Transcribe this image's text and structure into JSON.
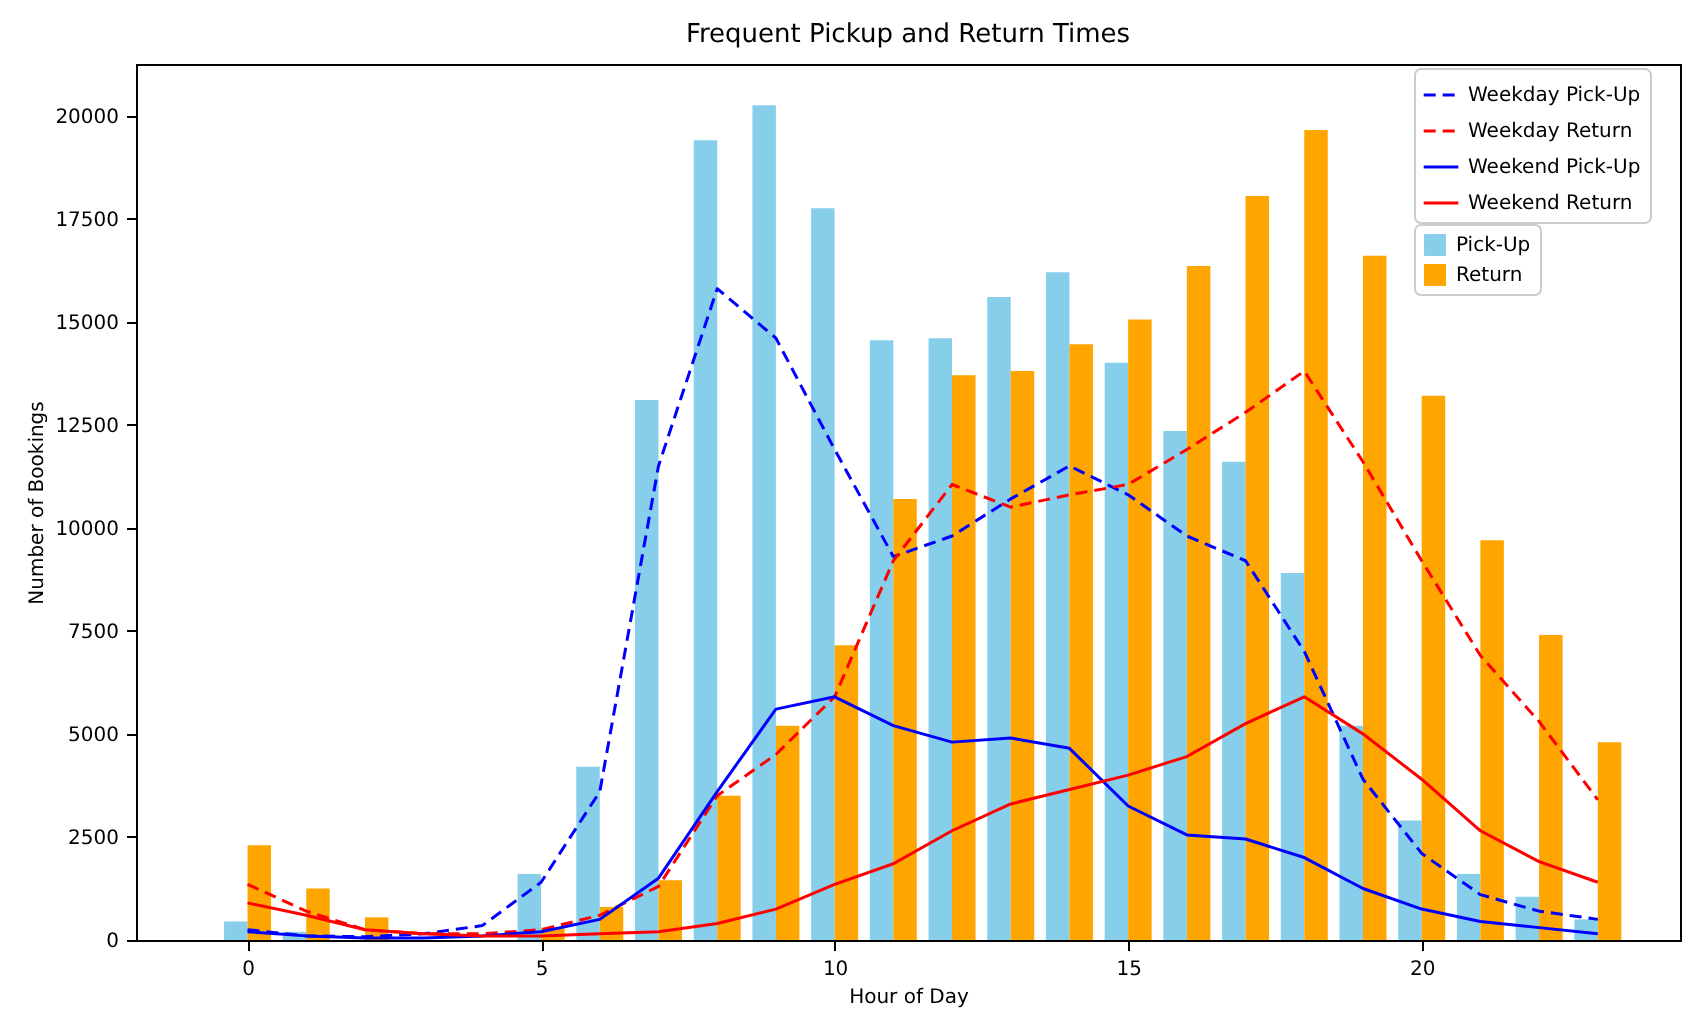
{
  "chart_data": {
    "type": "bar",
    "title": "Frequent Pickup and Return Times",
    "xlabel": "Hour of Day",
    "ylabel": "Number of Bookings",
    "x": [
      0,
      1,
      2,
      3,
      4,
      5,
      6,
      7,
      8,
      9,
      10,
      11,
      12,
      13,
      14,
      15,
      16,
      17,
      18,
      19,
      20,
      21,
      22,
      23
    ],
    "xlim": [
      -1.9,
      24.4
    ],
    "xticks": [
      0,
      5,
      10,
      15,
      20
    ],
    "ylim": [
      0,
      21250
    ],
    "yticks": [
      0,
      2500,
      5000,
      7500,
      10000,
      12500,
      15000,
      17500,
      20000
    ],
    "legend": "top right",
    "series": [
      {
        "name": "Weekday Pick-Up",
        "type": "line",
        "line_style": "dashed",
        "color": "#0000ff",
        "values": [
          250,
          100,
          80,
          150,
          350,
          1400,
          3600,
          11500,
          15800,
          14600,
          11900,
          9300,
          9800,
          10700,
          11500,
          10800,
          9800,
          9200,
          7000,
          3900,
          2100,
          1100,
          700,
          500
        ]
      },
      {
        "name": "Weekday Return",
        "type": "line",
        "line_style": "dashed",
        "color": "#ff0000",
        "values": [
          1350,
          700,
          250,
          150,
          150,
          250,
          600,
          1300,
          3500,
          4500,
          5900,
          9200,
          11050,
          10500,
          10800,
          11050,
          11900,
          12800,
          13800,
          11600,
          9200,
          6900,
          5300,
          3400
        ]
      },
      {
        "name": "Weekend Pick-Up",
        "type": "line",
        "line_style": "solid",
        "color": "#0000ff",
        "values": [
          200,
          100,
          50,
          50,
          100,
          200,
          500,
          1500,
          3600,
          5600,
          5900,
          5200,
          4800,
          4900,
          4650,
          3250,
          2550,
          2450,
          2000,
          1250,
          750,
          450,
          300,
          150
        ]
      },
      {
        "name": "Weekend Return",
        "type": "line",
        "line_style": "solid",
        "color": "#ff0000",
        "values": [
          900,
          600,
          250,
          150,
          100,
          100,
          150,
          200,
          400,
          750,
          1350,
          1850,
          2650,
          3300,
          3650,
          4000,
          4450,
          5250,
          5900,
          5000,
          3900,
          2650,
          1900,
          1400
        ]
      },
      {
        "name": "Pick-Up",
        "color": "#87ceeb",
        "values": [
          450,
          200,
          null,
          null,
          null,
          1600,
          4200,
          13100,
          19400,
          20250,
          17750,
          14550,
          14600,
          15600,
          16200,
          14000,
          12350,
          11600,
          8900,
          5200,
          2900,
          1600,
          1050,
          500
        ]
      },
      {
        "name": "Return",
        "color": "#ffa500",
        "values": [
          2300,
          1250,
          550,
          null,
          null,
          300,
          800,
          1450,
          3500,
          5200,
          7150,
          10700,
          13700,
          13800,
          14450,
          15050,
          16350,
          18050,
          19650,
          16600,
          13200,
          9700,
          7400,
          4800
        ]
      }
    ]
  }
}
